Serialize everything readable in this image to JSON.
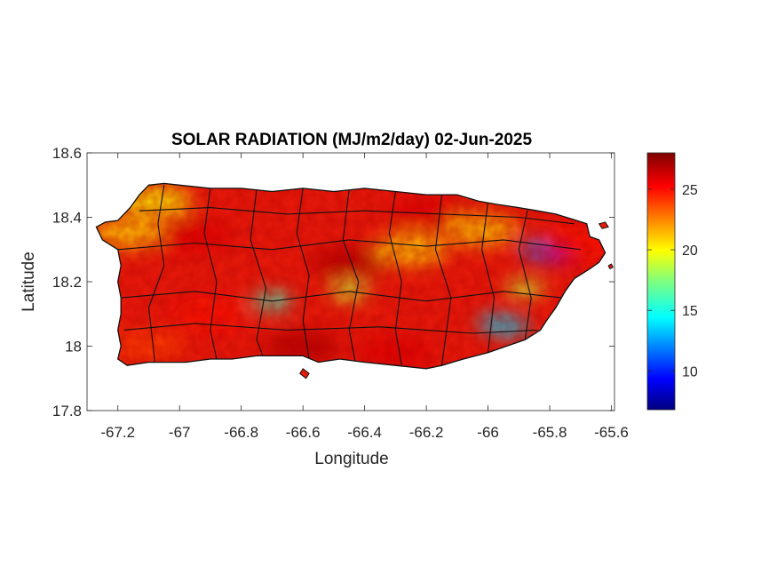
{
  "chart_data": {
    "type": "heatmap",
    "title": "SOLAR RADIATION (MJ/m2/day) 02-Jun-2025",
    "xlabel": "Longitude",
    "ylabel": "Latitude",
    "xlim": [
      -67.3,
      -65.59
    ],
    "ylim": [
      17.8,
      18.6
    ],
    "xticks": [
      -67.2,
      -67,
      -66.8,
      -66.6,
      -66.4,
      -66.2,
      -66,
      -65.8,
      -65.6
    ],
    "xtick_labels": [
      "-67.2",
      "-67",
      "-66.8",
      "-66.6",
      "-66.4",
      "-66.2",
      "-66",
      "-65.8",
      "-65.6"
    ],
    "yticks": [
      17.8,
      18,
      18.2,
      18.4,
      18.6
    ],
    "ytick_labels": [
      "17.8",
      "18",
      "18.2",
      "18.4",
      "18.6"
    ],
    "colorbar": {
      "colormap": "jet",
      "clim": [
        6.8,
        28
      ],
      "ticks": [
        10,
        15,
        20,
        25
      ],
      "tick_labels": [
        "10",
        "15",
        "20",
        "25"
      ]
    },
    "region": "Puerto Rico",
    "features": [
      {
        "lon": -66.45,
        "lat": 18.26,
        "value": 27
      },
      {
        "lon": -66.2,
        "lat": 18.41,
        "value": 26
      },
      {
        "lon": -66.9,
        "lat": 18.1,
        "value": 25
      },
      {
        "lon": -66.95,
        "lat": 18.34,
        "value": 26
      },
      {
        "lon": -67.1,
        "lat": 18.0,
        "value": 24
      },
      {
        "lon": -66.7,
        "lat": 18.14,
        "value": 16
      },
      {
        "lon": -66.45,
        "lat": 18.17,
        "value": 19
      },
      {
        "lon": -65.97,
        "lat": 18.07,
        "value": 14
      },
      {
        "lon": -65.93,
        "lat": 18.06,
        "value": 14
      },
      {
        "lon": -65.83,
        "lat": 18.3,
        "value": 12
      },
      {
        "lon": -65.78,
        "lat": 18.29,
        "value": 9
      },
      {
        "lon": -66.02,
        "lat": 18.36,
        "value": 21
      },
      {
        "lon": -67.17,
        "lat": 18.35,
        "value": 21
      },
      {
        "lon": -67.08,
        "lat": 18.45,
        "value": 20
      },
      {
        "lon": -66.25,
        "lat": 18.3,
        "value": 21
      },
      {
        "lon": -65.88,
        "lat": 18.18,
        "value": 19
      },
      {
        "lon": -66.6,
        "lat": 18.0,
        "value": 27
      },
      {
        "lon": -66.3,
        "lat": 17.98,
        "value": 26
      },
      {
        "lon": -65.7,
        "lat": 18.32,
        "value": 25
      }
    ]
  }
}
